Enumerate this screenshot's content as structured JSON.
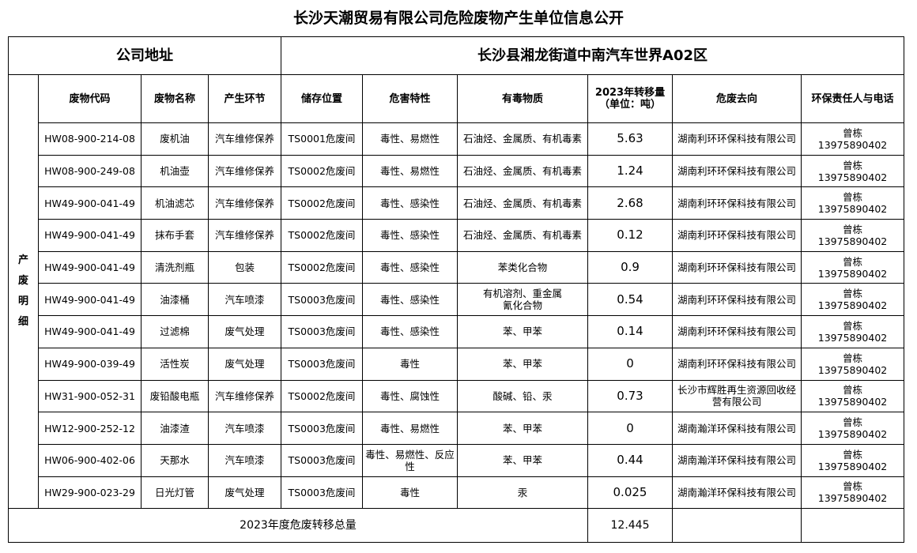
{
  "title": "长沙天潮贸易有限公司危险废物产生单位信息公开",
  "address_label": "公司地址",
  "address_value": "长沙县湘龙街道中南汽车世界A02区",
  "side_label": "产废明细",
  "headers": [
    "废物代码",
    "废物名称",
    "产生环节",
    "储存位置",
    "危害特性",
    "有毒物质",
    "2023年转移量\n（单位：吨）",
    "危废去向",
    "环保责任人与电话"
  ],
  "rows": [
    [
      "HW08-900-214-08",
      "废机油",
      "汽车维修保养",
      "TS0001危废间",
      "毒性、易燃性",
      "石油烃、金属质、有机毒素",
      "5.63",
      "湖南利环环保科技有限公司",
      "曾栋\n13975890402"
    ],
    [
      "HW08-900-249-08",
      "机油壶",
      "汽车维修保养",
      "TS0002危废间",
      "毒性、易燃性",
      "石油烃、金属质、有机毒素",
      "1.24",
      "湖南利环环保科技有限公司",
      "曾栋\n13975890402"
    ],
    [
      "HW49-900-041-49",
      "机油滤芯",
      "汽车维修保养",
      "TS0002危废间",
      "毒性、感染性",
      "石油烃、金属质、有机毒素",
      "2.68",
      "湖南利环环保科技有限公司",
      "曾栋\n13975890402"
    ],
    [
      "HW49-900-041-49",
      "抹布手套",
      "汽车维修保养",
      "TS0002危废间",
      "毒性、感染性",
      "石油烃、金属质、有机毒素",
      "0.12",
      "湖南利环环保科技有限公司",
      "曾栋\n13975890402"
    ],
    [
      "HW49-900-041-49",
      "清洗剂瓶",
      "包装",
      "TS0002危废间",
      "毒性、感染性",
      "苯类化合物",
      "0.9",
      "湖南利环环保科技有限公司",
      "曾栋\n13975890402"
    ],
    [
      "HW49-900-041-49",
      "油漆桶",
      "汽车喷漆",
      "TS0003危废间",
      "毒性、感染性",
      "有机溶剂、重金属\n氰化合物",
      "0.54",
      "湖南利环环保科技有限公司",
      "曾栋\n13975890402"
    ],
    [
      "HW49-900-041-49",
      "过滤棉",
      "废气处理",
      "TS0003危废间",
      "毒性、感染性",
      "苯、甲苯",
      "0.14",
      "湖南利环环保科技有限公司",
      "曾栋\n13975890402"
    ],
    [
      "HW49-900-039-49",
      "活性炭",
      "废气处理",
      "TS0003危废间",
      "毒性",
      "苯、甲苯",
      "0",
      "湖南利环环保科技有限公司",
      "曾栋\n13975890402"
    ],
    [
      "HW31-900-052-31",
      "废铅酸电瓶",
      "汽车维修保养",
      "TS0002危废间",
      "毒性、腐蚀性",
      "酸碱、铅、汞",
      "0.73",
      "长沙市辉胜再生资源回收经营有限公司",
      "曾栋\n13975890402"
    ],
    [
      "HW12-900-252-12",
      "油漆渣",
      "汽车喷漆",
      "TS0003危废间",
      "毒性、易燃性",
      "苯、甲苯",
      "0",
      "湖南瀚洋环保科技有限公司",
      "曾栋\n13975890402"
    ],
    [
      "HW06-900-402-06",
      "天那水",
      "汽车喷漆",
      "TS0003危废间",
      "毒性、易燃性、反应性",
      "苯、甲苯",
      "0.44",
      "湖南瀚洋环保科技有限公司",
      "曾栋\n13975890402"
    ],
    [
      "HW29-900-023-29",
      "日光灯管",
      "废气处理",
      "TS0003危废间",
      "毒性",
      "汞",
      "0.025",
      "湖南瀚洋环保科技有限公司",
      "曾栋\n13975890402"
    ]
  ],
  "total_label": "2023年度危废转移总量",
  "total_value": "12.445"
}
